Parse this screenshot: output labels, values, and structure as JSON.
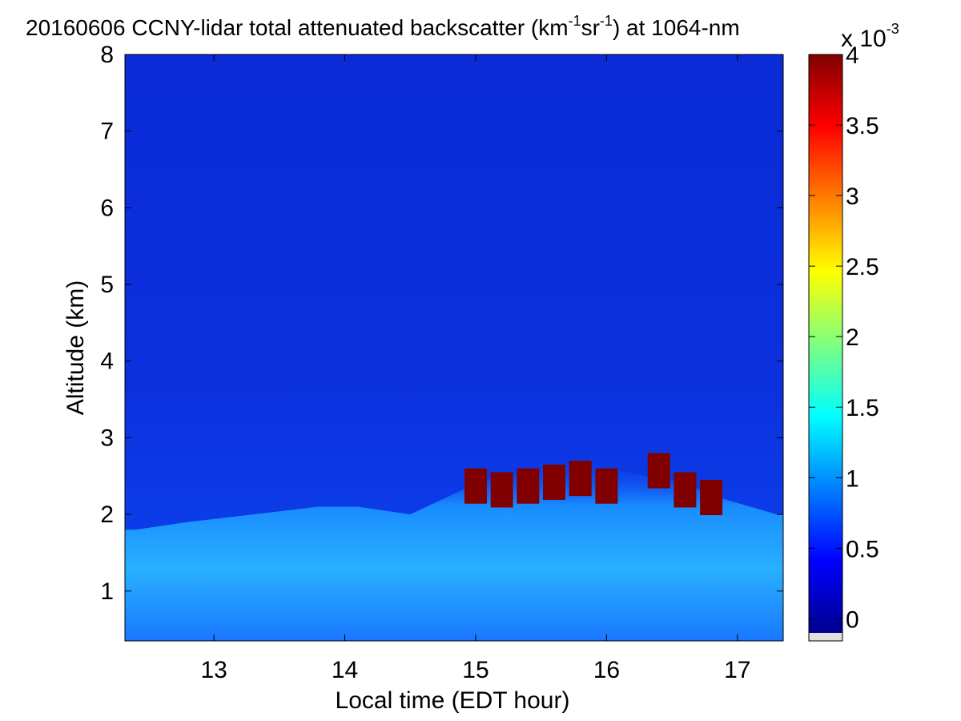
{
  "chart_data": {
    "type": "heatmap",
    "title": {
      "prefix": "20160606 CCNY-lidar total attenuated backscatter (km",
      "sup1": "-1",
      "mid": "sr",
      "sup2": "-1",
      "suffix": ") at 1064-nm"
    },
    "xlabel": "Local time (EDT hour)",
    "ylabel": "Altitude (km)",
    "xlim": [
      12.32,
      17.35
    ],
    "ylim": [
      0.35,
      8
    ],
    "xticks": [
      13,
      14,
      15,
      16,
      17
    ],
    "xtick_labels": [
      "13",
      "14",
      "15",
      "16",
      "17"
    ],
    "yticks": [
      1,
      2,
      3,
      4,
      5,
      6,
      7,
      8
    ],
    "ytick_labels": [
      "1",
      "2",
      "3",
      "4",
      "5",
      "6",
      "7",
      "8"
    ],
    "colorbar": {
      "colormap": "jet",
      "range": [
        -0.1,
        4
      ],
      "ticks": [
        0,
        0.5,
        1,
        1.5,
        2,
        2.5,
        3,
        3.5,
        4
      ],
      "tick_labels": [
        "0",
        "0.5",
        "1",
        "1.5",
        "2",
        "2.5",
        "3",
        "3.5",
        "4"
      ],
      "multiplier_base": "x 10",
      "multiplier_exp": "-3"
    },
    "layers": {
      "aerosol_layer_top_km": {
        "x": [
          12.4,
          12.8,
          13.3,
          13.8,
          14.1,
          14.5,
          15.0,
          15.2,
          15.5,
          15.8,
          16.0,
          16.3,
          16.6,
          16.9,
          17.3
        ],
        "y": [
          1.8,
          1.9,
          2.0,
          2.1,
          2.1,
          2.0,
          2.4,
          2.5,
          2.6,
          2.7,
          2.6,
          2.5,
          2.4,
          2.2,
          2.0
        ]
      },
      "cloud_top_km": {
        "x": [
          15.0,
          15.2,
          15.4,
          15.6,
          15.8,
          16.0,
          16.4,
          16.6,
          16.8
        ],
        "y": [
          2.6,
          2.55,
          2.6,
          2.65,
          2.7,
          2.6,
          2.8,
          2.55,
          2.45
        ]
      }
    }
  }
}
